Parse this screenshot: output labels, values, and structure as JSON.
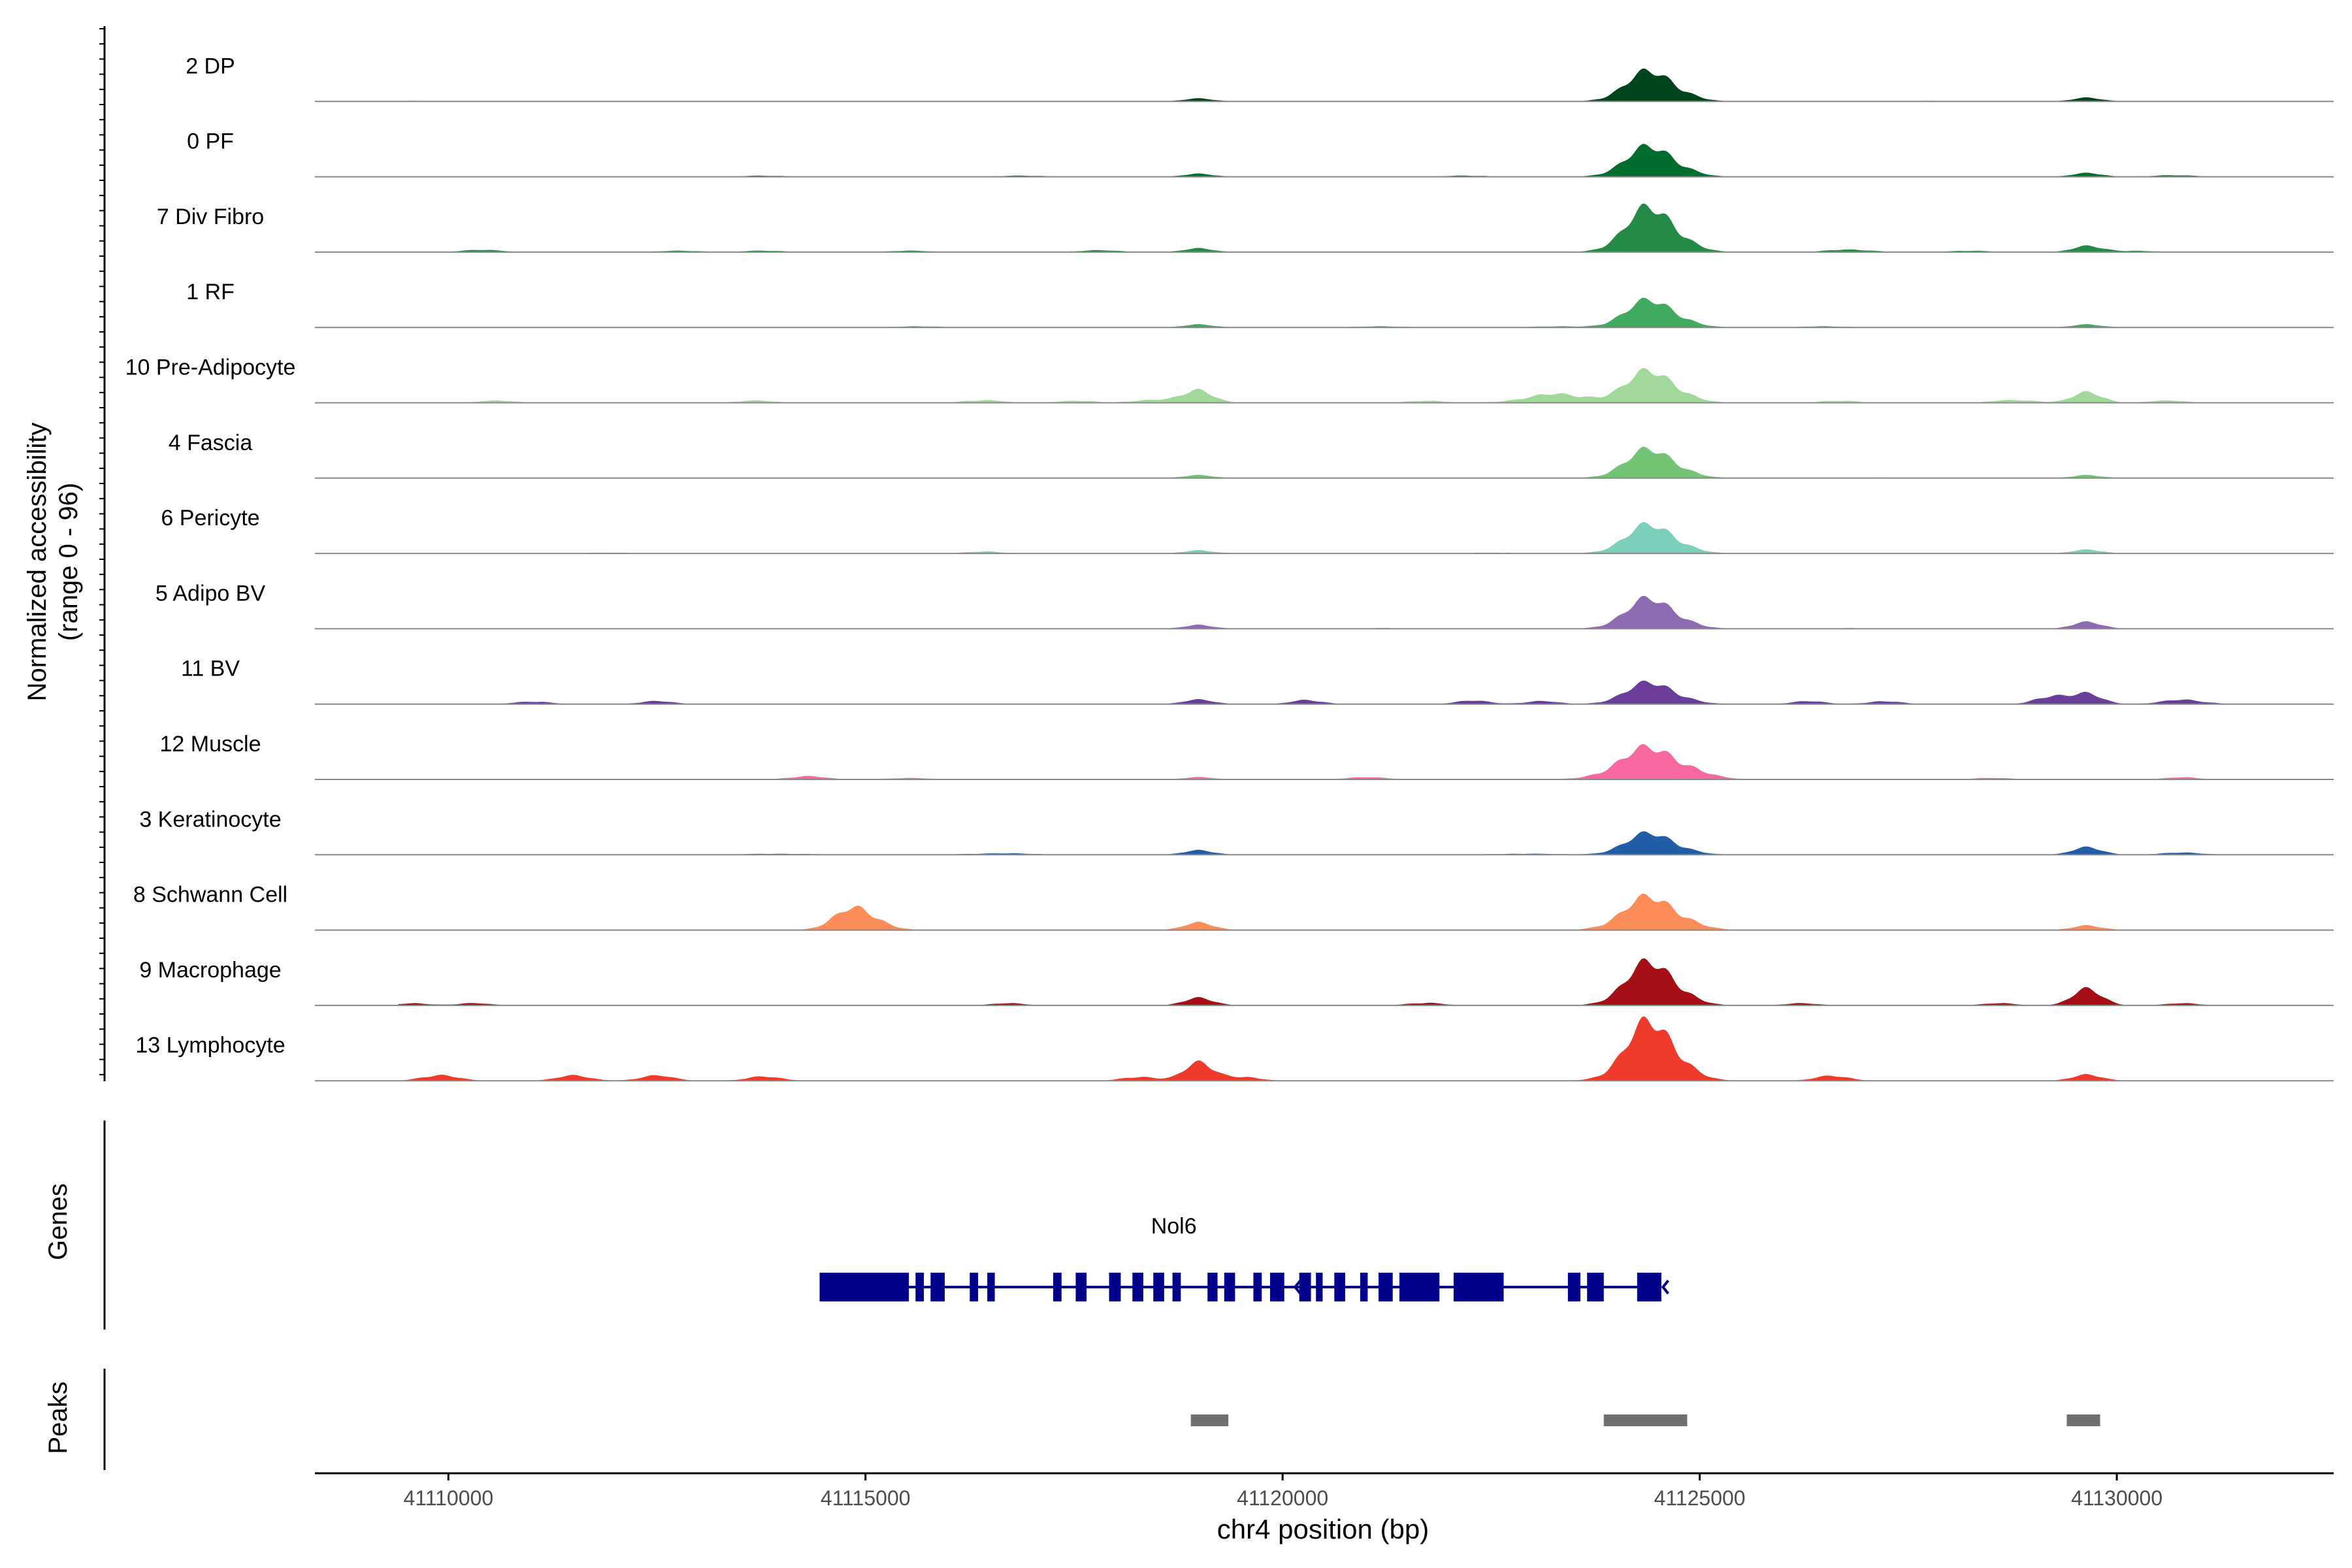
{
  "chart_data": {
    "type": "area",
    "xlabel": "chr4 position (bp)",
    "x_ticks": [
      "41110000",
      "41115000",
      "41120000",
      "41125000",
      "41130000"
    ],
    "x_tick_values": [
      41110000,
      41115000,
      41120000,
      41125000,
      41130000
    ],
    "xlim": [
      41108400,
      41132600
    ],
    "ylabel_line1": "Normalized accessibility",
    "ylabel_line2": "(range 0 - 96)",
    "ylim": [
      0,
      96
    ],
    "grid": false,
    "tracks": [
      {
        "name": "2 DP",
        "color": "#00441b",
        "peaks": [
          [
            41119000,
            4,
            180
          ],
          [
            41124430,
            42,
            300
          ],
          [
            41129650,
            5,
            180
          ],
          [
            41109500,
            0.8,
            300
          ],
          [
            41114200,
            0.8,
            300
          ],
          [
            41116200,
            0.8,
            300
          ],
          [
            41127800,
            0.8,
            300
          ]
        ]
      },
      {
        "name": "0 PF",
        "color": "#006d2c",
        "peaks": [
          [
            41119000,
            4,
            180
          ],
          [
            41124430,
            42,
            300
          ],
          [
            41129650,
            5,
            180
          ],
          [
            41113800,
            1.5,
            300
          ],
          [
            41116900,
            1.5,
            300
          ],
          [
            41122200,
            1.5,
            300
          ],
          [
            41130700,
            2,
            300
          ]
        ]
      },
      {
        "name": "7 Div Fibro",
        "color": "#238b45",
        "peaks": [
          [
            41119000,
            5,
            180
          ],
          [
            41124430,
            62,
            300
          ],
          [
            41129650,
            8,
            180
          ],
          [
            41110400,
            3,
            250
          ],
          [
            41112800,
            2,
            250
          ],
          [
            41113800,
            2,
            250
          ],
          [
            41115500,
            2,
            250
          ],
          [
            41117800,
            2.5,
            250
          ],
          [
            41126800,
            4,
            250
          ],
          [
            41128200,
            2,
            250
          ],
          [
            41130200,
            2,
            250
          ]
        ]
      },
      {
        "name": "1 RF",
        "color": "#41ab5d",
        "peaks": [
          [
            41119000,
            4,
            180
          ],
          [
            41124430,
            38,
            300
          ],
          [
            41129650,
            4,
            180
          ],
          [
            41121200,
            1.5,
            300
          ],
          [
            41123300,
            1.5,
            300
          ],
          [
            41126500,
            1.5,
            300
          ],
          [
            41115600,
            1.5,
            300
          ]
        ]
      },
      {
        "name": "10 Pre-Adipocyte",
        "color": "#a1d99b",
        "peaks": [
          [
            41119000,
            16,
            180
          ],
          [
            41124430,
            44,
            300
          ],
          [
            41129650,
            14,
            180
          ],
          [
            41110600,
            3,
            220
          ],
          [
            41113700,
            3,
            220
          ],
          [
            41116400,
            4,
            220
          ],
          [
            41117500,
            3,
            220
          ],
          [
            41118500,
            5,
            250
          ],
          [
            41121700,
            3,
            220
          ],
          [
            41123300,
            12,
            380
          ],
          [
            41126700,
            3,
            220
          ],
          [
            41128800,
            4,
            250
          ],
          [
            41130600,
            3,
            220
          ]
        ]
      },
      {
        "name": "4 Fascia",
        "color": "#74c476",
        "peaks": [
          [
            41119000,
            4,
            180
          ],
          [
            41124430,
            40,
            300
          ],
          [
            41129650,
            4,
            180
          ],
          [
            41112200,
            0.8,
            300
          ],
          [
            41120400,
            0.8,
            300
          ],
          [
            41127200,
            0.8,
            300
          ]
        ]
      },
      {
        "name": "6 Pericyte",
        "color": "#7ccfba",
        "peaks": [
          [
            41119000,
            4,
            180
          ],
          [
            41124430,
            40,
            300
          ],
          [
            41129650,
            5,
            180
          ],
          [
            41116400,
            3,
            200
          ],
          [
            41111900,
            1,
            300
          ],
          [
            41122500,
            1,
            300
          ]
        ]
      },
      {
        "name": "5 Adipo BV",
        "color": "#8c6bb1",
        "peaks": [
          [
            41119000,
            5,
            180
          ],
          [
            41124430,
            42,
            300
          ],
          [
            41129650,
            9,
            180
          ],
          [
            41121300,
            1,
            300
          ],
          [
            41126800,
            1,
            300
          ]
        ]
      },
      {
        "name": "11 BV",
        "color": "#6a3d9a",
        "peaks": [
          [
            41119000,
            6,
            180
          ],
          [
            41124430,
            30,
            300
          ],
          [
            41129650,
            14,
            180
          ],
          [
            41111000,
            4,
            200
          ],
          [
            41112500,
            4,
            200
          ],
          [
            41120300,
            6,
            180
          ],
          [
            41122300,
            5,
            200
          ],
          [
            41123100,
            4,
            200
          ],
          [
            41126300,
            4,
            200
          ],
          [
            41127200,
            4,
            200
          ],
          [
            41129200,
            12,
            180
          ],
          [
            41130800,
            6,
            250
          ]
        ]
      },
      {
        "name": "12 Muscle",
        "color": "#f768a1",
        "peaks": [
          [
            41119000,
            3,
            180
          ],
          [
            41124430,
            44,
            380
          ],
          [
            41114300,
            5,
            200
          ],
          [
            41115500,
            2,
            250
          ],
          [
            41121000,
            3,
            250
          ],
          [
            41128500,
            2,
            250
          ],
          [
            41130800,
            3,
            200
          ]
        ]
      },
      {
        "name": "3 Keratinocyte",
        "color": "#225ea8",
        "peaks": [
          [
            41119000,
            6,
            180
          ],
          [
            41124430,
            30,
            300
          ],
          [
            41129650,
            10,
            180
          ],
          [
            41114000,
            1.5,
            400
          ],
          [
            41116600,
            2,
            400
          ],
          [
            41122900,
            1.5,
            400
          ],
          [
            41130800,
            3,
            250
          ]
        ]
      },
      {
        "name": "8 Schwann Cell",
        "color": "#fc8d59",
        "peaks": [
          [
            41114900,
            32,
            250
          ],
          [
            41119000,
            10,
            180
          ],
          [
            41124430,
            46,
            330
          ],
          [
            41129650,
            6,
            180
          ]
        ]
      },
      {
        "name": "9 Macrophage",
        "color": "#a50f15",
        "peaks": [
          [
            41119000,
            10,
            180
          ],
          [
            41124430,
            60,
            300
          ],
          [
            41129650,
            22,
            180
          ],
          [
            41109600,
            3,
            200
          ],
          [
            41110300,
            3,
            200
          ],
          [
            41116700,
            3,
            200
          ],
          [
            41121700,
            4,
            200
          ],
          [
            41126200,
            3,
            200
          ],
          [
            41128600,
            3,
            200
          ],
          [
            41130800,
            3,
            200
          ]
        ]
      },
      {
        "name": "13 Lymphocyte",
        "color": "#ef3b2c",
        "peaks": [
          [
            41119000,
            24,
            180
          ],
          [
            41124430,
            82,
            300
          ],
          [
            41129650,
            8,
            180
          ],
          [
            41109900,
            9,
            200
          ],
          [
            41111500,
            7,
            200
          ],
          [
            41112500,
            7,
            200
          ],
          [
            41113800,
            6,
            200
          ],
          [
            41118300,
            6,
            200
          ],
          [
            41119500,
            6,
            200
          ],
          [
            41126600,
            7,
            200
          ]
        ]
      }
    ],
    "genes_label": "Genes",
    "gene": {
      "name": "Nol6",
      "start": 41114450,
      "end": 41124540,
      "strand": "-",
      "color": "#00008b",
      "exons": [
        [
          41114450,
          41115520
        ],
        [
          41115600,
          41115700
        ],
        [
          41115780,
          41115950
        ],
        [
          41116250,
          41116350
        ],
        [
          41116460,
          41116550
        ],
        [
          41117250,
          41117350
        ],
        [
          41117520,
          41117650
        ],
        [
          41117920,
          41118060
        ],
        [
          41118200,
          41118330
        ],
        [
          41118450,
          41118580
        ],
        [
          41118680,
          41118780
        ],
        [
          41119100,
          41119220
        ],
        [
          41119300,
          41119430
        ],
        [
          41119650,
          41119750
        ],
        [
          41119850,
          41120020
        ],
        [
          41120200,
          41120340
        ],
        [
          41120400,
          41120480
        ],
        [
          41120620,
          41120750
        ],
        [
          41120930,
          41121020
        ],
        [
          41121150,
          41121320
        ],
        [
          41121400,
          41121880
        ],
        [
          41122050,
          41122650
        ],
        [
          41123420,
          41123570
        ],
        [
          41123650,
          41123850
        ],
        [
          41124250,
          41124540
        ]
      ]
    },
    "peaks_label": "Peaks",
    "peak_regions": [
      [
        41118900,
        41119350
      ],
      [
        41123850,
        41124850
      ],
      [
        41129400,
        41129800
      ]
    ]
  }
}
